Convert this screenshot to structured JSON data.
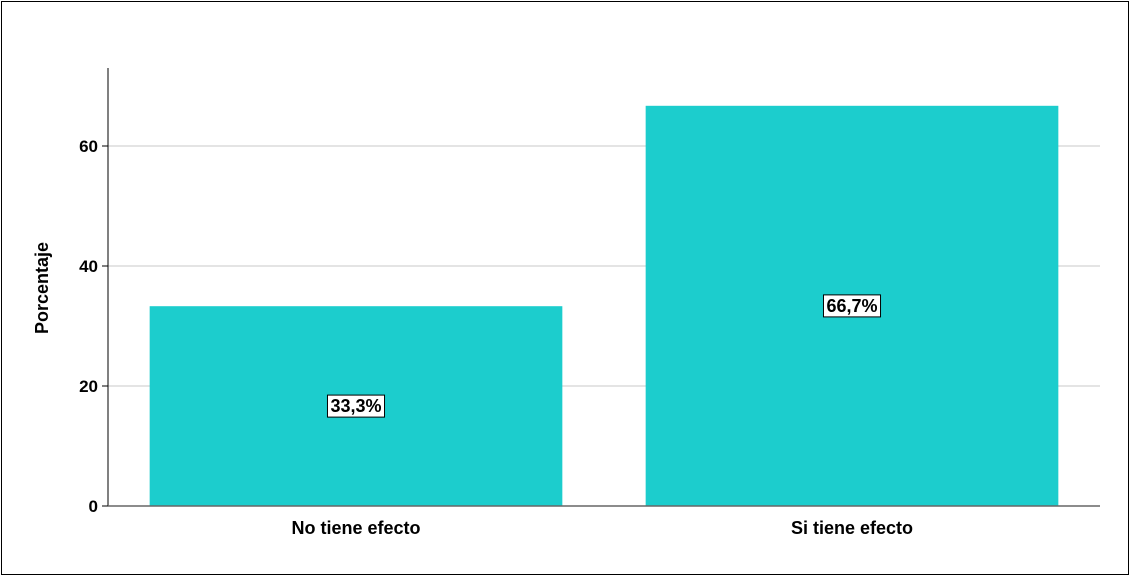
{
  "chart_data": {
    "type": "bar",
    "categories": [
      "No tiene efecto",
      "Si tiene efecto"
    ],
    "values": [
      33.3,
      66.7
    ],
    "data_labels": [
      "33,3%",
      "66,7%"
    ],
    "title": "",
    "xlabel": "",
    "ylabel": "Porcentaje",
    "ylim": [
      0,
      73
    ],
    "yticks": [
      0,
      20,
      40,
      60
    ],
    "ytick_labels": [
      "0",
      "20",
      "40",
      "60"
    ],
    "grid": true,
    "legend": "none",
    "bar_color": "#1ccdcd"
  }
}
